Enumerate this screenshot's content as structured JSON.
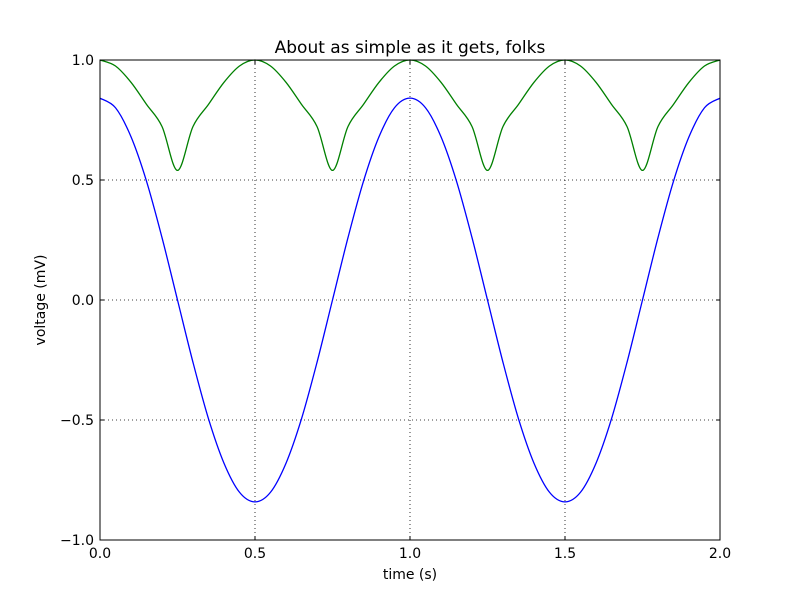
{
  "chart_data": {
    "type": "line",
    "title": "About as simple as it gets, folks",
    "xlabel": "time (s)",
    "ylabel": "voltage (mV)",
    "xlim": [
      0.0,
      2.0
    ],
    "ylim": [
      -1.0,
      1.0
    ],
    "x_ticks": [
      0.0,
      0.5,
      1.0,
      1.5,
      2.0
    ],
    "x_tick_labels": [
      "0.0",
      "0.5",
      "1.0",
      "1.5",
      "2.0"
    ],
    "y_ticks": [
      -1.0,
      -0.5,
      0.0,
      0.5,
      1.0
    ],
    "y_tick_labels": [
      "−1.0",
      "−0.5",
      "0.0",
      "0.5",
      "1.0"
    ],
    "grid": true,
    "legend": "none",
    "series": [
      {
        "color": "#0000ff",
        "x": [
          0.0,
          0.05,
          0.1,
          0.15,
          0.2,
          0.25,
          0.3,
          0.35,
          0.4,
          0.45,
          0.5,
          0.55,
          0.6,
          0.65,
          0.7,
          0.75,
          0.8,
          0.85,
          0.9,
          0.95,
          1.0,
          1.05,
          1.1,
          1.15,
          1.2,
          1.25,
          1.3,
          1.35,
          1.4,
          1.45,
          1.5,
          1.55,
          1.6,
          1.65,
          1.7,
          1.75,
          1.8,
          1.85,
          1.9,
          1.95,
          2.0
        ],
        "y": [
          0.841,
          0.801,
          0.68,
          0.495,
          0.26,
          0.0,
          -0.26,
          -0.495,
          -0.68,
          -0.801,
          -0.841,
          -0.801,
          -0.68,
          -0.495,
          -0.26,
          0.0,
          0.26,
          0.495,
          0.68,
          0.801,
          0.841,
          0.801,
          0.68,
          0.495,
          0.26,
          0.0,
          -0.26,
          -0.495,
          -0.68,
          -0.801,
          -0.841,
          -0.801,
          -0.68,
          -0.495,
          -0.26,
          0.0,
          0.26,
          0.495,
          0.68,
          0.801,
          0.841
        ]
      },
      {
        "color": "#008000",
        "x": [
          0.0,
          0.05,
          0.1,
          0.15,
          0.2,
          0.25,
          0.3,
          0.35,
          0.4,
          0.45,
          0.5,
          0.55,
          0.6,
          0.65,
          0.7,
          0.75,
          0.8,
          0.85,
          0.9,
          0.95,
          1.0,
          1.05,
          1.1,
          1.15,
          1.2,
          1.25,
          1.3,
          1.35,
          1.4,
          1.45,
          1.5,
          1.55,
          1.6,
          1.65,
          1.7,
          1.75,
          1.8,
          1.85,
          1.9,
          1.95,
          2.0
        ],
        "y": [
          1.0,
          0.975,
          0.907,
          0.815,
          0.723,
          0.54,
          0.723,
          0.815,
          0.907,
          0.975,
          1.0,
          0.975,
          0.907,
          0.815,
          0.723,
          0.54,
          0.723,
          0.815,
          0.907,
          0.975,
          1.0,
          0.975,
          0.907,
          0.815,
          0.723,
          0.54,
          0.723,
          0.815,
          0.907,
          0.975,
          1.0,
          0.975,
          0.907,
          0.815,
          0.723,
          0.54,
          0.723,
          0.815,
          0.907,
          0.975,
          1.0
        ]
      }
    ]
  }
}
